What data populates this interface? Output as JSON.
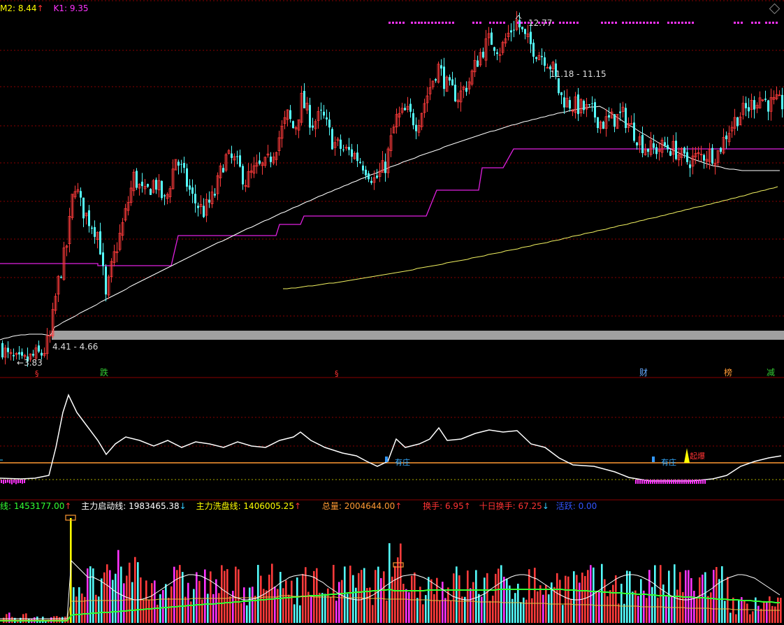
{
  "header": {
    "items": [
      {
        "text": "M2: 8.44",
        "color": "#ffff00",
        "arrow": "↑",
        "arrow_color": "#ff3333"
      },
      {
        "text": "K1: 9.35",
        "color": "#ff33ff",
        "arrow": "",
        "arrow_color": ""
      }
    ]
  },
  "price_labels": {
    "high": "12.77",
    "range_upper": "11.18 - 11.15",
    "range_lower": "4.41 - 4.66",
    "low": "3.83"
  },
  "markers": [
    {
      "text": "§",
      "color": "#ff3333"
    },
    {
      "text": "跌",
      "color": "#33cc33"
    },
    {
      "text": "§",
      "color": "#ff3333"
    },
    {
      "text": "财",
      "color": "#66aaff"
    },
    {
      "text": "榜",
      "color": "#ff9933"
    },
    {
      "text": "减",
      "color": "#33cc33"
    }
  ],
  "indicator": {
    "tags": [
      "有庄",
      "有庄"
    ],
    "alert": "起爆"
  },
  "volume_header": [
    {
      "label": "线: ",
      "value": "1453177.00",
      "color": "#33ff33",
      "arrow": "↑",
      "arrow_color": "#ff3333"
    },
    {
      "label": "主力启动线: ",
      "value": "1983465.38",
      "color": "#ffffff",
      "arrow": "↓",
      "arrow_color": "#33ccff"
    },
    {
      "label": "主力洗盘线: ",
      "value": "1406005.25",
      "color": "#ffff00",
      "arrow": "↑",
      "arrow_color": "#ff3333"
    },
    {
      "label": "总量: ",
      "value": "2004644.00",
      "color": "#ff9933",
      "arrow": "↑",
      "arrow_color": "#ff3333"
    },
    {
      "label": "换手: ",
      "value": "6.95",
      "color": "#ff3333",
      "arrow": "↑",
      "arrow_color": "#ff3333"
    },
    {
      "label": "十日换手: ",
      "value": "67.25",
      "color": "#ff3333",
      "arrow": "↓",
      "arrow_color": "#33ccff"
    },
    {
      "label": "活跃: ",
      "value": "0.00",
      "color": "#3355ff",
      "arrow": "",
      "arrow_color": ""
    }
  ],
  "colors": {
    "up": "#ff3b3b",
    "down": "#54fcfc",
    "magenta_line": "#e020e0",
    "white_line": "#ffffff",
    "yellow_line": "#f0f060",
    "grid": "#7a0000",
    "band": "#a0a0a0",
    "green_line": "#33ff33"
  },
  "chart_data": {
    "type": "candlestick",
    "price_extremes": {
      "high": 12.77,
      "low": 3.83
    },
    "ranges": [
      [
        4.41,
        4.66
      ],
      [
        11.18,
        11.15
      ]
    ],
    "indicators_last": {
      "M2": 8.44,
      "K1": 9.35,
      "volume_line": 1453177.0,
      "main_start_line": 1983465.38,
      "main_wash_line": 1406005.25,
      "total_volume": 2004644.0,
      "turnover": 6.95,
      "ten_day_turnover": 67.25,
      "active": 0.0
    },
    "close_path": [
      [
        0,
        4.3
      ],
      [
        10,
        4.0
      ],
      [
        20,
        3.9
      ],
      [
        30,
        3.83
      ],
      [
        45,
        4.0
      ],
      [
        60,
        4.1
      ],
      [
        70,
        4.5
      ],
      [
        80,
        5.8
      ],
      [
        95,
        7.0
      ],
      [
        105,
        8.6
      ],
      [
        115,
        7.9
      ],
      [
        125,
        7.6
      ],
      [
        140,
        7.2
      ],
      [
        150,
        5.5
      ],
      [
        160,
        6.5
      ],
      [
        175,
        7.5
      ],
      [
        190,
        8.7
      ],
      [
        205,
        8.2
      ],
      [
        220,
        8.6
      ],
      [
        235,
        8.0
      ],
      [
        250,
        9.2
      ],
      [
        260,
        8.8
      ],
      [
        275,
        8.1
      ],
      [
        290,
        7.8
      ],
      [
        305,
        8.2
      ],
      [
        320,
        9.2
      ],
      [
        335,
        9.1
      ],
      [
        350,
        8.6
      ],
      [
        365,
        8.9
      ],
      [
        380,
        9.0
      ],
      [
        395,
        9.6
      ],
      [
        410,
        10.3
      ],
      [
        420,
        9.9
      ],
      [
        430,
        10.7
      ],
      [
        445,
        10.1
      ],
      [
        460,
        10.3
      ],
      [
        475,
        9.6
      ],
      [
        490,
        9.4
      ],
      [
        505,
        9.3
      ],
      [
        520,
        9.0
      ],
      [
        535,
        8.6
      ],
      [
        550,
        9.0
      ],
      [
        565,
        10.2
      ],
      [
        580,
        10.4
      ],
      [
        595,
        10.1
      ],
      [
        605,
        10.6
      ],
      [
        615,
        11.1
      ],
      [
        625,
        11.6
      ],
      [
        640,
        11.0
      ],
      [
        655,
        10.8
      ],
      [
        670,
        11.2
      ],
      [
        685,
        11.9
      ],
      [
        700,
        12.3
      ],
      [
        715,
        12.0
      ],
      [
        725,
        12.4
      ],
      [
        738,
        12.77
      ],
      [
        750,
        12.3
      ],
      [
        765,
        12.0
      ],
      [
        780,
        11.8
      ],
      [
        790,
        11.5
      ],
      [
        800,
        10.8
      ],
      [
        815,
        10.6
      ],
      [
        830,
        10.5
      ],
      [
        845,
        10.4
      ],
      [
        860,
        10.1
      ],
      [
        875,
        10.2
      ],
      [
        890,
        10.3
      ],
      [
        905,
        9.9
      ],
      [
        920,
        9.5
      ],
      [
        935,
        9.4
      ],
      [
        950,
        9.5
      ],
      [
        965,
        9.4
      ],
      [
        980,
        9.1
      ],
      [
        995,
        9.2
      ],
      [
        1010,
        9.3
      ],
      [
        1025,
        9.3
      ],
      [
        1040,
        9.9
      ],
      [
        1055,
        10.3
      ],
      [
        1070,
        10.5
      ],
      [
        1085,
        10.8
      ],
      [
        1100,
        10.6
      ],
      [
        1115,
        10.6
      ]
    ]
  }
}
